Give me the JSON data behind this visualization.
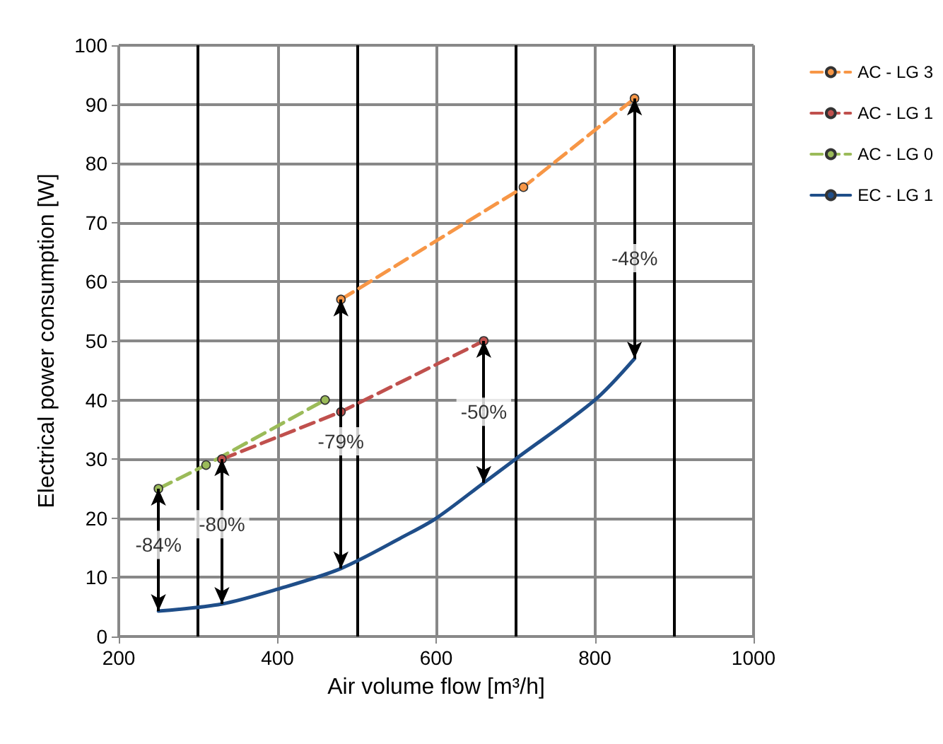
{
  "chart_data": {
    "type": "line",
    "xlabel": "Air volume flow [m³/h]",
    "ylabel": "Electrical power consumption [W]",
    "xlim": [
      200,
      1000
    ],
    "xticks": [
      200,
      400,
      600,
      800,
      1000
    ],
    "ylim": [
      0,
      100
    ],
    "yticks": [
      0,
      10,
      20,
      30,
      40,
      50,
      60,
      70,
      80,
      90,
      100
    ],
    "grid": true,
    "legend": "right",
    "series": [
      {
        "name": "AC - LG 3",
        "color": "#f79646",
        "x": [
          480,
          710,
          850
        ],
        "values": [
          57,
          76,
          91
        ],
        "marker": "circle",
        "line_style": "dashed"
      },
      {
        "name": "AC - LG 1",
        "color": "#c0504d",
        "x": [
          330,
          480,
          660
        ],
        "values": [
          30,
          38,
          50
        ],
        "marker": "circle",
        "line_style": "dashed"
      },
      {
        "name": "AC - LG 0",
        "color": "#9bbb59",
        "x": [
          250,
          310,
          460
        ],
        "values": [
          25,
          29,
          40
        ],
        "marker": "circle",
        "line_style": "dashed"
      },
      {
        "name": "EC - LG 1",
        "color": "#1f4e89",
        "x": [
          250,
          330,
          400,
          480,
          560,
          600,
          660,
          700,
          800,
          850
        ],
        "values": [
          4.3,
          5.5,
          8,
          11.5,
          17,
          20,
          26,
          30,
          40,
          47
        ],
        "marker": "none",
        "line_style": "solid"
      }
    ],
    "annotations": [
      {
        "text": "-84%",
        "x": 250,
        "y": 15.5
      },
      {
        "text": "-80%",
        "x": 330,
        "y": 19
      },
      {
        "text": "-79%",
        "x": 480,
        "y": 33
      },
      {
        "text": "-50%",
        "x": 660,
        "y": 38
      },
      {
        "text": "-48%",
        "x": 850,
        "y": 64
      }
    ]
  }
}
